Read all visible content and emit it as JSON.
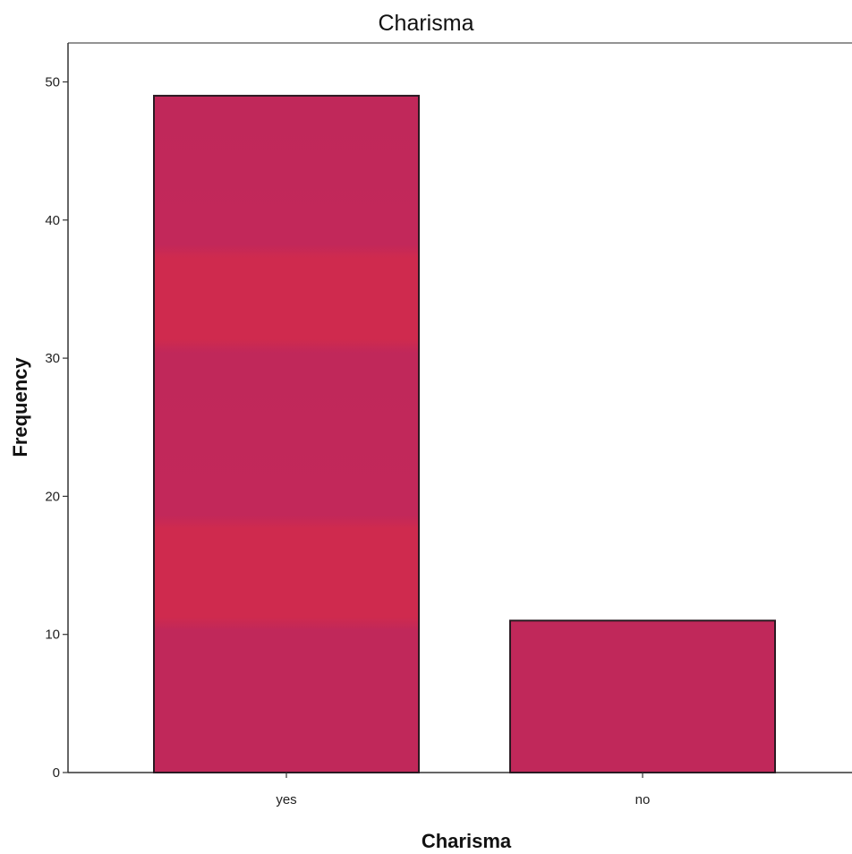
{
  "chart_data": {
    "type": "bar",
    "title": "Charisma",
    "xlabel": "Charisma",
    "ylabel": "Frequency",
    "categories": [
      "yes",
      "no"
    ],
    "values": [
      49,
      11
    ],
    "ylim": [
      0,
      52
    ],
    "yticks": [
      0,
      10,
      20,
      30,
      40,
      50
    ],
    "grid": false,
    "bar_color": "#c0285a",
    "bar_band_color": "#cf2a4e",
    "bar_outline_color": "#2a1a22"
  }
}
